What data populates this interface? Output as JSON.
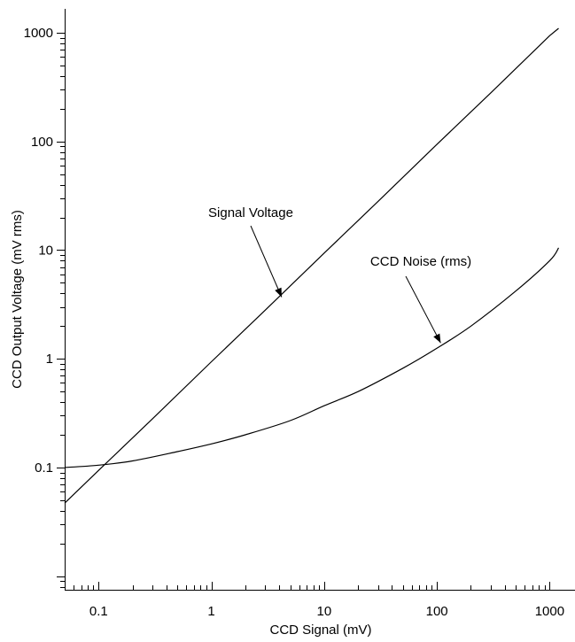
{
  "chart_data": {
    "type": "line",
    "title": "",
    "xlabel": "CCD Signal (mV)",
    "ylabel": "CCD Output Voltage (mV rms)",
    "xscale": "log",
    "yscale": "log",
    "xlim": [
      0.05,
      1350
    ],
    "ylim": [
      0.0075,
      1600
    ],
    "x_tick_labels": [
      "0.1",
      "1",
      "10",
      "100",
      "1000"
    ],
    "y_tick_labels": [
      "0.1",
      "1",
      "10",
      "100",
      "1000"
    ],
    "grid": false,
    "series": [
      {
        "name": "Signal Voltage",
        "x": [
          0.05,
          0.1,
          0.3,
          1,
          3,
          10,
          30,
          100,
          300,
          1000,
          1200
        ],
        "y": [
          0.047,
          0.094,
          0.28,
          0.94,
          2.8,
          9.4,
          28,
          94,
          280,
          940,
          1100
        ]
      },
      {
        "name": "CCD Noise (rms)",
        "x": [
          0.05,
          0.1,
          0.2,
          0.5,
          1,
          2,
          5,
          10,
          20,
          50,
          100,
          200,
          500,
          1000,
          1200
        ],
        "y": [
          0.1,
          0.105,
          0.115,
          0.14,
          0.165,
          0.2,
          0.27,
          0.37,
          0.5,
          0.82,
          1.25,
          2.0,
          4.2,
          8.0,
          10.5
        ]
      }
    ],
    "annotations": [
      {
        "text": "Signal Voltage",
        "x": 4.2,
        "y": 3.7
      },
      {
        "text": "CCD Noise (rms)",
        "x": 108,
        "y": 1.4
      }
    ]
  }
}
